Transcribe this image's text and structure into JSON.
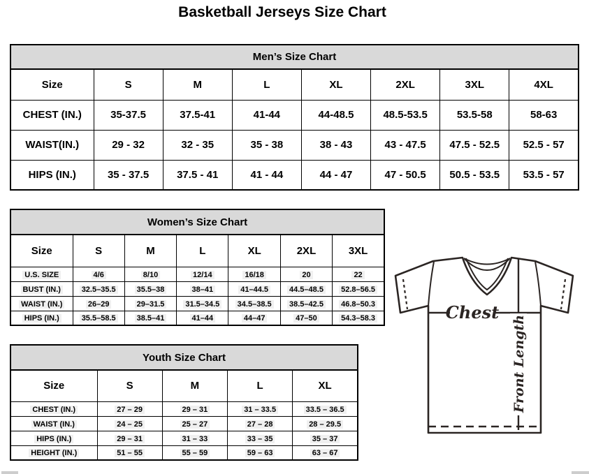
{
  "page": {
    "title": "Basketball Jerseys Size Chart"
  },
  "tables": {
    "mens": {
      "title": "Men’s Size Chart",
      "header": [
        "Size",
        "S",
        "M",
        "L",
        "XL",
        "2XL",
        "3XL",
        "4XL"
      ],
      "rows": [
        {
          "label": "CHEST (IN.)",
          "values": [
            "35-37.5",
            "37.5-41",
            "41-44",
            "44-48.5",
            "48.5-53.5",
            "53.5-58",
            "58-63"
          ]
        },
        {
          "label": "WAIST(IN.)",
          "values": [
            "29 - 32",
            "32 - 35",
            "35 - 38",
            "38 - 43",
            "43 - 47.5",
            "47.5 - 52.5",
            "52.5 - 57"
          ]
        },
        {
          "label": "HIPS (IN.)",
          "values": [
            "35 - 37.5",
            "37.5 - 41",
            "41 - 44",
            "44 - 47",
            "47 - 50.5",
            "50.5 - 53.5",
            "53.5 - 57"
          ]
        }
      ]
    },
    "womens": {
      "title": "Women’s Size Chart",
      "header": [
        "Size",
        "S",
        "M",
        "L",
        "XL",
        "2XL",
        "3XL"
      ],
      "rows": [
        {
          "label": "U.S. SIZE",
          "values": [
            "4/6",
            "8/10",
            "12/14",
            "16/18",
            "20",
            "22"
          ]
        },
        {
          "label": "BUST (IN.)",
          "values": [
            "32.5–35.5",
            "35.5–38",
            "38–41",
            "41–44.5",
            "44.5–48.5",
            "52.8–56.5"
          ]
        },
        {
          "label": "WAIST (IN.)",
          "values": [
            "26–29",
            "29–31.5",
            "31.5–34.5",
            "34.5–38.5",
            "38.5–42.5",
            "46.8–50.3"
          ]
        },
        {
          "label": "HIPS (IN.)",
          "values": [
            "35.5–58.5",
            "38.5–41",
            "41–44",
            "44–47",
            "47–50",
            "54.3–58.3"
          ]
        }
      ]
    },
    "youth": {
      "title": "Youth Size Chart",
      "header": [
        "Size",
        "S",
        "M",
        "L",
        "XL"
      ],
      "rows": [
        {
          "label": "CHEST (IN.)",
          "values": [
            "27 – 29",
            "29 – 31",
            "31 – 33.5",
            "33.5 – 36.5"
          ]
        },
        {
          "label": "WAIST (IN.)",
          "values": [
            "24 – 25",
            "25 – 27",
            "27 – 28",
            "28 – 29.5"
          ]
        },
        {
          "label": "HIPS (IN.)",
          "values": [
            "29 – 31",
            "31 – 33",
            "33 – 35",
            "35 – 37"
          ]
        },
        {
          "label": "HEIGHT (IN.)",
          "values": [
            "51 – 55",
            "55 – 59",
            "59 – 63",
            "63 – 67"
          ]
        }
      ]
    }
  },
  "diagram": {
    "chest_label": "Chest",
    "front_length_label": "Front Length"
  },
  "colors": {
    "table_header_bg": "#d9d9d9",
    "table_border": "#000000",
    "diagram_stroke": "#2b2523",
    "scrollbar_gray": "#cdcdcd"
  }
}
